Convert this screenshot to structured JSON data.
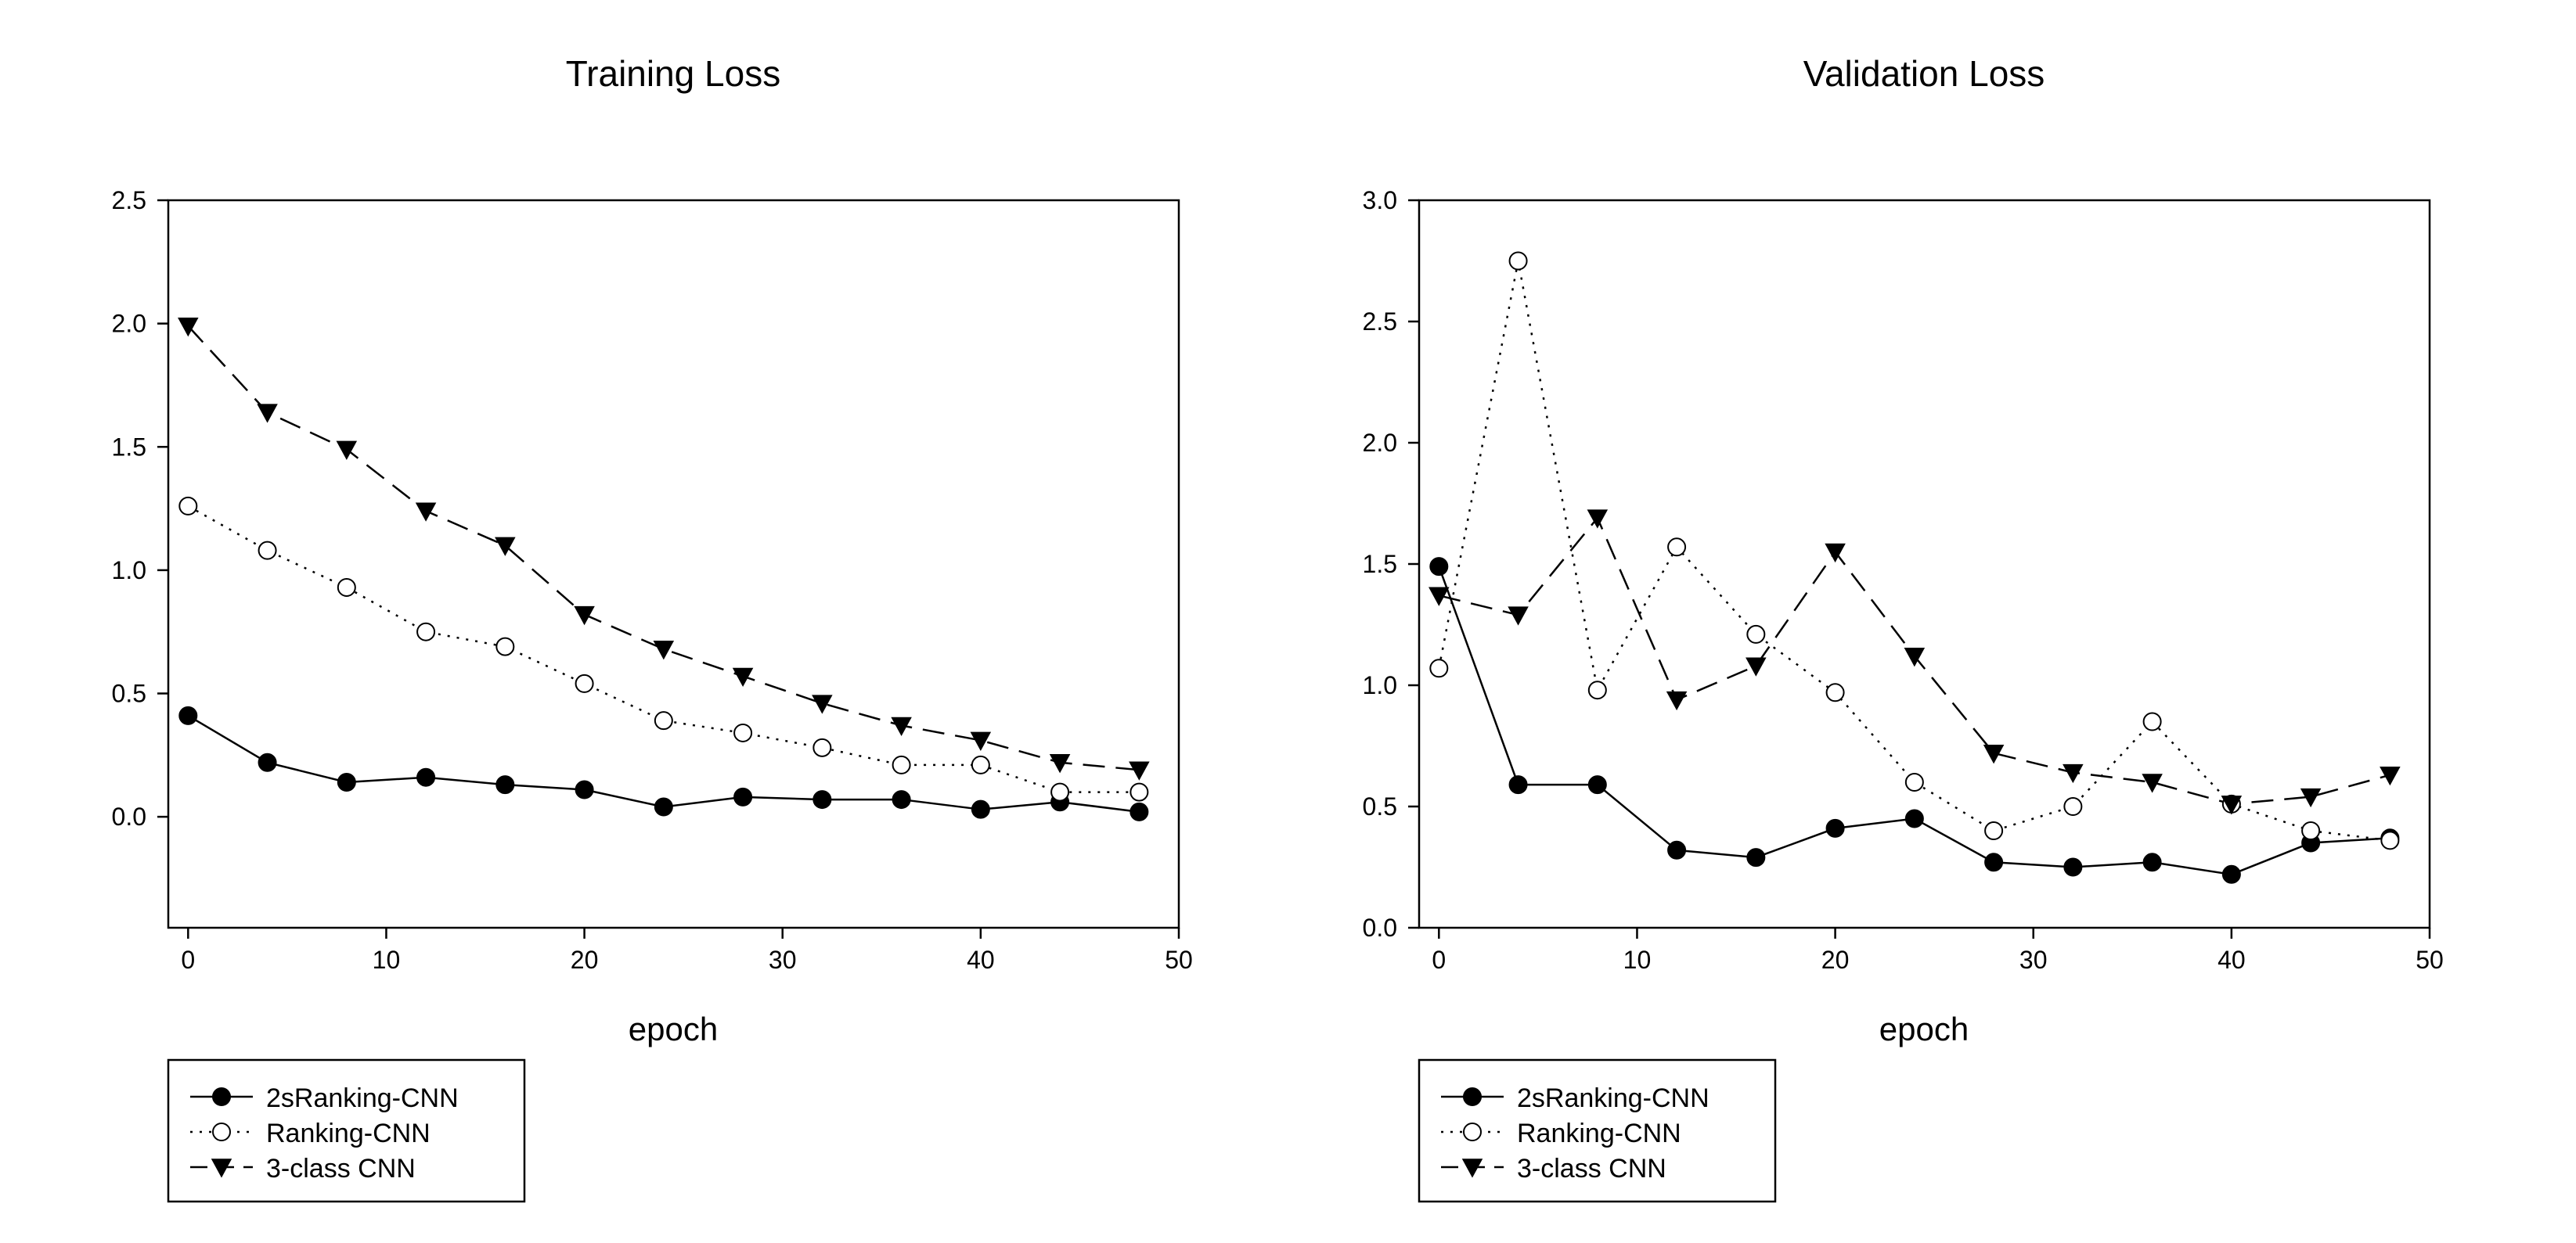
{
  "chart_data": [
    {
      "type": "line",
      "title": "Training Loss",
      "xlabel": "epoch",
      "ylabel": "",
      "xlim": [
        -1,
        50
      ],
      "ylim": [
        -0.45,
        2.5
      ],
      "xticks": [
        0,
        10,
        20,
        30,
        40,
        50
      ],
      "yticks": [
        0.0,
        0.5,
        1.0,
        1.5,
        2.0,
        2.5
      ],
      "x": [
        0,
        4,
        8,
        12,
        16,
        20,
        24,
        28,
        32,
        36,
        40,
        44,
        48
      ],
      "grid": false,
      "legend_position": "bottom-left below plot",
      "series": [
        {
          "name": "2sRanking-CNN",
          "values": [
            0.41,
            0.22,
            0.14,
            0.16,
            0.13,
            0.11,
            0.04,
            0.08,
            0.07,
            0.07,
            0.03,
            0.06,
            0.02
          ]
        },
        {
          "name": "Ranking-CNN",
          "values": [
            1.26,
            1.08,
            0.93,
            0.75,
            0.69,
            0.54,
            0.39,
            0.34,
            0.28,
            0.21,
            0.21,
            0.1,
            0.1
          ]
        },
        {
          "name": "3-class CNN",
          "values": [
            1.99,
            1.64,
            1.49,
            1.24,
            1.1,
            0.82,
            0.68,
            0.57,
            0.46,
            0.37,
            0.31,
            0.22,
            0.19
          ]
        }
      ]
    },
    {
      "type": "line",
      "title": "Validation Loss",
      "xlabel": "epoch",
      "ylabel": "",
      "xlim": [
        -1,
        50
      ],
      "ylim": [
        0.0,
        3.0
      ],
      "xticks": [
        0,
        10,
        20,
        30,
        40,
        50
      ],
      "yticks": [
        0.0,
        0.5,
        1.0,
        1.5,
        2.0,
        2.5,
        3.0
      ],
      "x": [
        0,
        4,
        8,
        12,
        16,
        20,
        24,
        28,
        32,
        36,
        40,
        44,
        48
      ],
      "grid": false,
      "legend_position": "bottom-left below plot",
      "series": [
        {
          "name": "2sRanking-CNN",
          "values": [
            1.49,
            0.59,
            0.59,
            0.32,
            0.29,
            0.41,
            0.45,
            0.27,
            0.25,
            0.27,
            0.22,
            0.35,
            0.37
          ]
        },
        {
          "name": "Ranking-CNN",
          "values": [
            1.07,
            2.75,
            0.98,
            1.57,
            1.21,
            0.97,
            0.6,
            0.4,
            0.5,
            0.85,
            0.51,
            0.4,
            0.36
          ]
        },
        {
          "name": "3-class CNN",
          "values": [
            1.37,
            1.29,
            1.69,
            0.94,
            1.08,
            1.55,
            1.12,
            0.72,
            0.64,
            0.6,
            0.51,
            0.54,
            0.63
          ]
        }
      ]
    }
  ],
  "series_styles": [
    {
      "marker": "filled-circle-icon",
      "dash": "solid",
      "color": "#000000"
    },
    {
      "marker": "open-circle-icon",
      "dash": "dotted",
      "color": "#000000"
    },
    {
      "marker": "filled-triangle-down-icon",
      "dash": "dashed",
      "color": "#000000"
    }
  ]
}
